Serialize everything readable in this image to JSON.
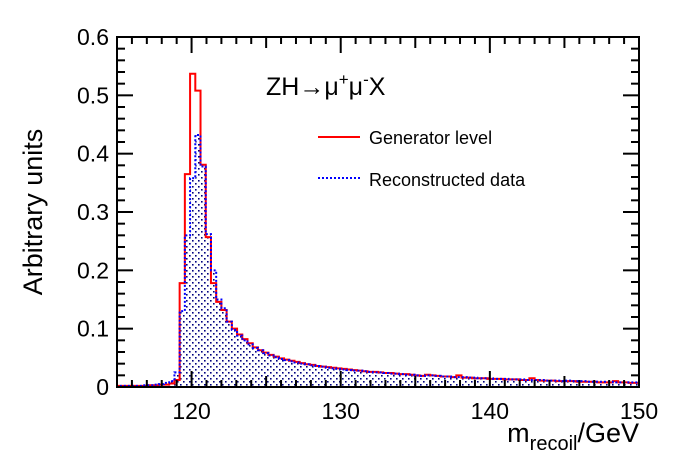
{
  "chart_data": {
    "type": "histogram-step",
    "title": "",
    "annotation": {
      "parts": [
        {
          "text": "ZH",
          "sup": false
        },
        {
          "text": "→",
          "sup": false
        },
        {
          "text": "μ",
          "sup": false
        },
        {
          "text": "+",
          "sup": true
        },
        {
          "text": "μ",
          "sup": false
        },
        {
          "text": "-",
          "sup": true
        },
        {
          "text": "X",
          "sup": false
        }
      ]
    },
    "xlabel": {
      "main": "m",
      "sub": "recoil",
      "suffix": "/GeV"
    },
    "ylabel": "Arbitrary units",
    "xlim": [
      115,
      150
    ],
    "ylim": [
      0,
      0.6
    ],
    "xticks": [
      120,
      130,
      140,
      150
    ],
    "xtick_labels": [
      "120",
      "130",
      "140",
      "150"
    ],
    "yticks": [
      0,
      0.1,
      0.2,
      0.3,
      0.4,
      0.5,
      0.6
    ],
    "ytick_labels": [
      "0",
      "0.1",
      "0.2",
      "0.3",
      "0.4",
      "0.5",
      "0.6"
    ],
    "grid": false,
    "legend": {
      "placement": "top-right",
      "entries": [
        {
          "label": "Generator level",
          "color": "#ff0000",
          "style": "solid"
        },
        {
          "label": "Reconstructed data",
          "color": "#0000ff",
          "style": "dotted"
        }
      ]
    },
    "bin_start": 115,
    "bin_width": 0.35,
    "series": [
      {
        "name": "Generator level",
        "color": "#ff0000",
        "style": "solid",
        "values": [
          0.002,
          0.002,
          0.002,
          0.002,
          0.002,
          0.002,
          0.003,
          0.003,
          0.004,
          0.004,
          0.006,
          0.012,
          0.178,
          0.365,
          0.537,
          0.508,
          0.381,
          0.257,
          0.178,
          0.146,
          0.132,
          0.112,
          0.1,
          0.09,
          0.082,
          0.075,
          0.068,
          0.063,
          0.059,
          0.055,
          0.052,
          0.049,
          0.047,
          0.045,
          0.043,
          0.041,
          0.039,
          0.038,
          0.036,
          0.035,
          0.034,
          0.033,
          0.032,
          0.031,
          0.03,
          0.029,
          0.028,
          0.027,
          0.026,
          0.026,
          0.025,
          0.024,
          0.024,
          0.023,
          0.022,
          0.022,
          0.021,
          0.02,
          0.019,
          0.021,
          0.02,
          0.019,
          0.018,
          0.018,
          0.017,
          0.02,
          0.016,
          0.016,
          0.015,
          0.015,
          0.015,
          0.014,
          0.014,
          0.014,
          0.013,
          0.013,
          0.013,
          0.012,
          0.012,
          0.015,
          0.012,
          0.011,
          0.011,
          0.011,
          0.01,
          0.01,
          0.01,
          0.01,
          0.009,
          0.009,
          0.009,
          0.009,
          0.008,
          0.008,
          0.008,
          0.01,
          0.008,
          0.008,
          0.007,
          0.007
        ]
      },
      {
        "name": "Reconstructed data",
        "color": "#0000ff",
        "style": "dotted",
        "filled": true,
        "values": [
          0.002,
          0.002,
          0.002,
          0.002,
          0.002,
          0.003,
          0.003,
          0.004,
          0.005,
          0.007,
          0.01,
          0.025,
          0.13,
          0.26,
          0.358,
          0.432,
          0.378,
          0.262,
          0.2,
          0.15,
          0.135,
          0.112,
          0.098,
          0.088,
          0.08,
          0.073,
          0.067,
          0.063,
          0.058,
          0.054,
          0.051,
          0.048,
          0.046,
          0.044,
          0.042,
          0.04,
          0.039,
          0.037,
          0.036,
          0.035,
          0.033,
          0.032,
          0.031,
          0.03,
          0.029,
          0.028,
          0.028,
          0.027,
          0.026,
          0.025,
          0.025,
          0.024,
          0.023,
          0.023,
          0.022,
          0.021,
          0.021,
          0.02,
          0.019,
          0.02,
          0.02,
          0.019,
          0.018,
          0.018,
          0.017,
          0.017,
          0.017,
          0.016,
          0.016,
          0.015,
          0.015,
          0.015,
          0.014,
          0.014,
          0.014,
          0.013,
          0.013,
          0.013,
          0.012,
          0.012,
          0.012,
          0.012,
          0.011,
          0.011,
          0.011,
          0.01,
          0.011,
          0.01,
          0.01,
          0.01,
          0.009,
          0.009,
          0.009,
          0.009,
          0.009,
          0.008,
          0.008,
          0.008,
          0.008,
          0.008
        ]
      }
    ]
  }
}
